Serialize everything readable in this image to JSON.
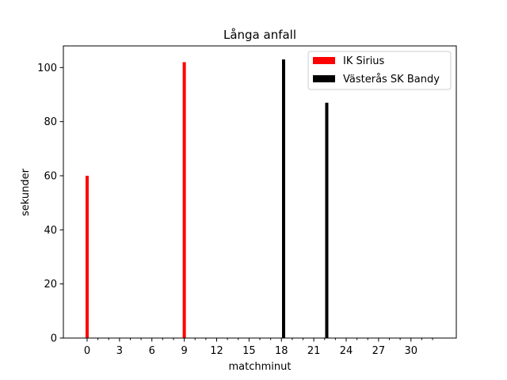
{
  "chart_data": {
    "type": "bar",
    "title": "Långa anfall",
    "xlabel": "matchminut",
    "ylabel": "sekunder",
    "xlim": [
      -2.2,
      34.2
    ],
    "ylim": [
      0,
      108
    ],
    "x_ticks_major": [
      0,
      3,
      6,
      9,
      12,
      15,
      18,
      21,
      24,
      27,
      30
    ],
    "x_ticks_minor_step": 1,
    "y_ticks": [
      0,
      20,
      40,
      60,
      80,
      100
    ],
    "grid": false,
    "legend_position": "top-right",
    "series": [
      {
        "name": "IK Sirius",
        "color": "#ff0000",
        "x": [
          0,
          9
        ],
        "values": [
          60,
          102
        ]
      },
      {
        "name": "Västerås SK Bandy",
        "color": "#000000",
        "x": [
          18.2,
          22.2
        ],
        "values": [
          103,
          87
        ]
      }
    ]
  }
}
